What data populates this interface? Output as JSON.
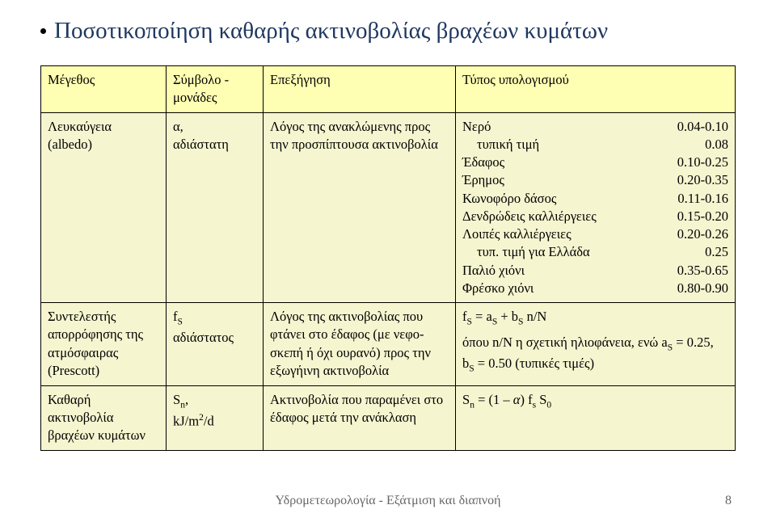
{
  "title": "Ποσοτικοποίηση καθαρής ακτινοβολίας βραχέων κυμάτων",
  "headers": {
    "c1": "Μέγεθος",
    "c2": "Σύμβολο - μονάδες",
    "c3": "Επεξήγηση",
    "c4": "Τύπος υπολογισμού"
  },
  "rows": [
    {
      "c1": "Λευκαύγεια (albedo)",
      "c2": "α,\nαδιάστατη",
      "c3": "Λόγος της ανακλώμενης προς την προσπίπτουσα ακτινοβολία",
      "albedo": [
        {
          "label": "Νερό",
          "range": "0.04-0.10",
          "indent": false
        },
        {
          "label": "τυπική τιμή",
          "range": "0.08",
          "indent": true
        },
        {
          "label": "Έδαφος",
          "range": "0.10-0.25",
          "indent": false
        },
        {
          "label": "Έρημος",
          "range": "0.20-0.35",
          "indent": false
        },
        {
          "label": "Κωνοφόρο δάσος",
          "range": "0.11-0.16",
          "indent": false
        },
        {
          "label": "Δενδρώδεις καλλιέργειες",
          "range": "0.15-0.20",
          "indent": false
        },
        {
          "label": "Λοιπές καλλιέργειες",
          "range": "0.20-0.26",
          "indent": false
        },
        {
          "label": "τυπ. τιμή για Ελλάδα",
          "range": "0.25",
          "indent": true
        },
        {
          "label": "Παλιό χιόνι",
          "range": "0.35-0.65",
          "indent": false
        },
        {
          "label": "Φρέσκο χιόνι",
          "range": "0.80-0.90",
          "indent": false
        }
      ]
    },
    {
      "c1": "Συντελεστής απορρόφησης της ατμόσφαιρας (Prescott)",
      "c2_html": "f<span class='sub'>S</span><br>αδιάστατος",
      "c3": "Λόγος της ακτινοβολίας που φτάνει στο έδαφος (με νεφο­σκεπή ή όχι ουρανό) προς την εξωγήινη ακτινοβολία",
      "c4_html": "<p>f<span class='sub'>S</span> = a<span class='sub'>S</span> + b<span class='sub'>S</span> n/N</p><p>όπου n/N η σχετική ηλιοφάνεια, ενώ a<span class='sub'>S</span> = 0.25, b<span class='sub'>S</span> = 0.50 (τυπικές τιμές)</p>"
    },
    {
      "c1": "Καθαρή ακτινοβολία βραχέων κυμάτων",
      "c2_html": "S<span class='sub'>n</span>,<br>kJ/m<span class='sup'>2</span>/d",
      "c3": "Ακτινοβολία που παραμένει στο έδαφος μετά την ανάκλαση",
      "c4_html": "S<span class='sub'>n</span> = (1 – <i>α</i>) f<span class='sub'>s</span> S<span class='sub'>0</span>"
    }
  ],
  "footer": "Υδρομετεωρολογία - Εξάτμιση και διαπνοή",
  "pagenum": "8"
}
